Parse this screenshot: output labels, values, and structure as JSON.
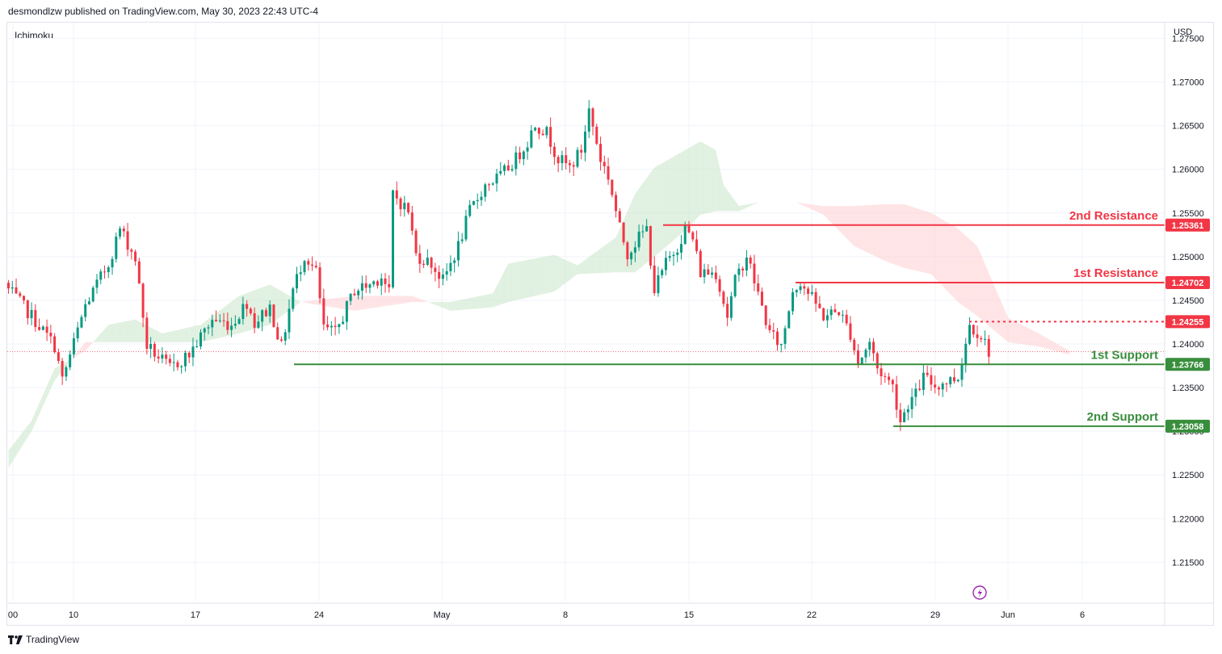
{
  "header": {
    "published_text": "desmondlzw published on TradingView.com, May 30, 2023 22:43 UTC-4"
  },
  "indicator_label": "Ichimoku",
  "currency_label": "USD",
  "footer": {
    "brand": "TradingView"
  },
  "colors": {
    "up": "#089981",
    "down": "#f23645",
    "resistance": "#f23645",
    "support": "#388e3c",
    "cloud_bull": "#c8e6c9",
    "cloud_bear": "#ffcdd2"
  },
  "chart_data": {
    "type": "candlestick",
    "title": "",
    "xlabel": "",
    "ylabel": "",
    "ylim": [
      1.2105,
      1.2768
    ],
    "y_ticks": [
      "1.27500",
      "1.27000",
      "1.26500",
      "1.26000",
      "1.25500",
      "1.25000",
      "1.24500",
      "1.24000",
      "1.23500",
      "1.23000",
      "1.22500",
      "1.22000",
      "1.21500"
    ],
    "x_ticks": [
      "00",
      "10",
      "17",
      "24",
      "May",
      "8",
      "15",
      "22",
      "29",
      "Jun",
      "6"
    ],
    "levels": [
      {
        "name": "2nd Resistance",
        "value": 1.25361,
        "tag": "1.25361",
        "kind": "resistance",
        "style": "solid"
      },
      {
        "name": "1st Resistance",
        "value": 1.24702,
        "tag": "1.24702",
        "kind": "resistance",
        "style": "solid"
      },
      {
        "name": "",
        "value": 1.24255,
        "tag": "1.24255",
        "kind": "resistance",
        "style": "dotted"
      },
      {
        "name": "1st Support",
        "value": 1.23766,
        "tag": "1.23766",
        "kind": "support",
        "style": "solid"
      },
      {
        "name": "2nd Support",
        "value": 1.23058,
        "tag": "1.23058",
        "kind": "support",
        "style": "solid"
      }
    ],
    "close_anchors": [
      [
        0,
        1.2462
      ],
      [
        6,
        1.2432
      ],
      [
        12,
        1.2398
      ],
      [
        14,
        1.2358
      ],
      [
        20,
        1.2444
      ],
      [
        26,
        1.2492
      ],
      [
        29,
        1.2532
      ],
      [
        33,
        1.2498
      ],
      [
        36,
        1.2398
      ],
      [
        42,
        1.2372
      ],
      [
        47,
        1.2388
      ],
      [
        53,
        1.2428
      ],
      [
        58,
        1.2422
      ],
      [
        62,
        1.2448
      ],
      [
        64,
        1.2424
      ],
      [
        68,
        1.2442
      ],
      [
        71,
        1.2396
      ],
      [
        74,
        1.2462
      ],
      [
        77,
        1.2502
      ],
      [
        80,
        1.2482
      ],
      [
        82,
        1.2418
      ],
      [
        85,
        1.2412
      ],
      [
        90,
        1.2462
      ],
      [
        94,
        1.2468
      ],
      [
        97,
        1.2478
      ],
      [
        99,
        1.2458
      ],
      [
        100,
        1.2572
      ],
      [
        104,
        1.2552
      ],
      [
        106,
        1.2502
      ],
      [
        110,
        1.2492
      ],
      [
        113,
        1.2472
      ],
      [
        117,
        1.2512
      ],
      [
        120,
        1.2552
      ],
      [
        124,
        1.2582
      ],
      [
        128,
        1.2592
      ],
      [
        132,
        1.2612
      ],
      [
        135,
        1.2632
      ],
      [
        137,
        1.2652
      ],
      [
        140,
        1.2642
      ],
      [
        143,
        1.2612
      ],
      [
        146,
        1.2602
      ],
      [
        149,
        1.2622
      ],
      [
        151,
        1.2668
      ],
      [
        154,
        1.2612
      ],
      [
        156,
        1.2592
      ],
      [
        159,
        1.2532
      ],
      [
        161,
        1.2504
      ],
      [
        164,
        1.2522
      ],
      [
        166,
        1.2532
      ],
      [
        168,
        1.2462
      ],
      [
        171,
        1.2492
      ],
      [
        174,
        1.2512
      ],
      [
        176,
        1.2532
      ],
      [
        178,
        1.252
      ],
      [
        180,
        1.2482
      ],
      [
        184,
        1.2482
      ],
      [
        187,
        1.2432
      ],
      [
        189,
        1.2472
      ],
      [
        192,
        1.2502
      ],
      [
        194,
        1.2472
      ],
      [
        198,
        1.2412
      ],
      [
        201,
        1.2398
      ],
      [
        204,
        1.2462
      ],
      [
        206,
        1.2472
      ],
      [
        209,
        1.2452
      ],
      [
        212,
        1.2432
      ],
      [
        216,
        1.2438
      ],
      [
        219,
        1.2412
      ],
      [
        221,
        1.2378
      ],
      [
        224,
        1.2402
      ],
      [
        226,
        1.2372
      ],
      [
        230,
        1.2352
      ],
      [
        232,
        1.2312
      ],
      [
        234,
        1.2332
      ],
      [
        236,
        1.2342
      ],
      [
        238,
        1.2362
      ],
      [
        241,
        1.2352
      ],
      [
        244,
        1.2357
      ],
      [
        247,
        1.2362
      ],
      [
        250,
        1.2422
      ],
      [
        253,
        1.241
      ],
      [
        255,
        1.2392
      ]
    ],
    "span_a": [
      [
        0,
        1.2278
      ],
      [
        6,
        1.2312
      ],
      [
        12,
        1.2372
      ],
      [
        20,
        1.2392
      ],
      [
        26,
        1.2422
      ],
      [
        33,
        1.2428
      ],
      [
        40,
        1.2412
      ],
      [
        50,
        1.2422
      ],
      [
        60,
        1.2455
      ],
      [
        68,
        1.2468
      ],
      [
        76,
        1.2448
      ],
      [
        90,
        1.2438
      ],
      [
        105,
        1.2448
      ],
      [
        115,
        1.2448
      ],
      [
        126,
        1.2458
      ],
      [
        130,
        1.2492
      ],
      [
        142,
        1.2502
      ],
      [
        148,
        1.249
      ],
      [
        158,
        1.2522
      ],
      [
        163,
        1.2572
      ],
      [
        168,
        1.2602
      ],
      [
        176,
        1.2622
      ],
      [
        180,
        1.2632
      ],
      [
        184,
        1.2622
      ],
      [
        186,
        1.2582
      ],
      [
        190,
        1.2558
      ],
      [
        195,
        1.2562
      ],
      [
        205,
        1.2562
      ],
      [
        212,
        1.2548
      ],
      [
        220,
        1.2512
      ],
      [
        228,
        1.2495
      ],
      [
        233,
        1.2487
      ],
      [
        240,
        1.248
      ],
      [
        247,
        1.2448
      ],
      [
        252,
        1.2432
      ],
      [
        260,
        1.2402
      ],
      [
        268,
        1.2397
      ],
      [
        276,
        1.2388
      ]
    ],
    "span_b": [
      [
        0,
        1.2258
      ],
      [
        6,
        1.23
      ],
      [
        12,
        1.2358
      ],
      [
        20,
        1.2402
      ],
      [
        26,
        1.2402
      ],
      [
        33,
        1.2402
      ],
      [
        40,
        1.2402
      ],
      [
        50,
        1.2402
      ],
      [
        60,
        1.2412
      ],
      [
        68,
        1.2422
      ],
      [
        76,
        1.2448
      ],
      [
        90,
        1.2455
      ],
      [
        105,
        1.2455
      ],
      [
        115,
        1.2438
      ],
      [
        126,
        1.2442
      ],
      [
        130,
        1.2448
      ],
      [
        142,
        1.246
      ],
      [
        148,
        1.248
      ],
      [
        158,
        1.2482
      ],
      [
        163,
        1.2482
      ],
      [
        168,
        1.25
      ],
      [
        176,
        1.253
      ],
      [
        180,
        1.2548
      ],
      [
        184,
        1.2552
      ],
      [
        186,
        1.2552
      ],
      [
        190,
        1.2552
      ],
      [
        195,
        1.2562
      ],
      [
        205,
        1.2562
      ],
      [
        212,
        1.2558
      ],
      [
        220,
        1.2558
      ],
      [
        228,
        1.256
      ],
      [
        233,
        1.256
      ],
      [
        240,
        1.255
      ],
      [
        247,
        1.2532
      ],
      [
        252,
        1.2512
      ],
      [
        260,
        1.243
      ],
      [
        268,
        1.2412
      ],
      [
        276,
        1.2392
      ]
    ],
    "current_price_line": 1.23912
  }
}
